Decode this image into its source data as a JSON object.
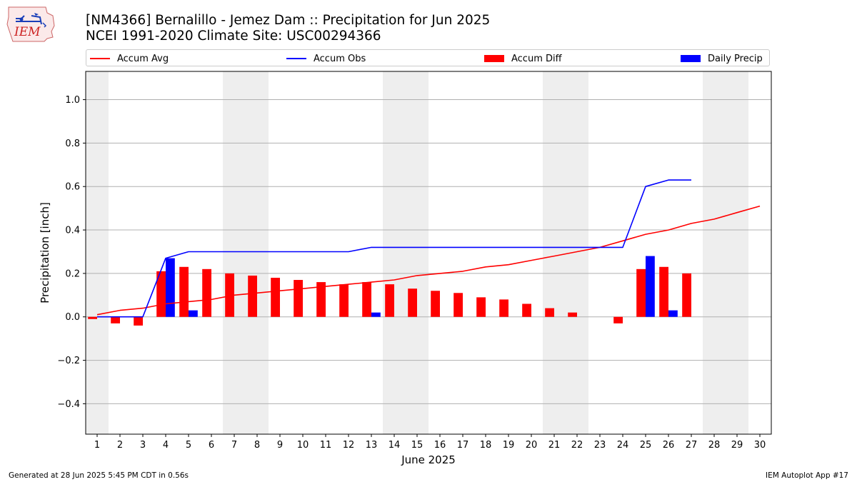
{
  "logo": {
    "text": "IEM"
  },
  "header": {
    "title_line1": "[NM4366] Bernalillo - Jemez Dam :: Precipitation for Jun 2025",
    "title_line2": "NCEI 1991-2020 Climate Site: USC00294366"
  },
  "footer": {
    "generated": "Generated at 28 Jun 2025 5:45 PM CDT in 0.56s",
    "app": "IEM Autoplot App #17"
  },
  "colors": {
    "avg": "#ff0000",
    "obs": "#0000ff",
    "diff": "#ff0000",
    "daily": "#0000ff",
    "weekend": "#eeeeee",
    "grid": "#b0b0b0"
  },
  "chart_data": {
    "type": "bar",
    "title": "[NM4366] Bernalillo - Jemez Dam :: Precipitation for Jun 2025",
    "subtitle": "NCEI 1991-2020 Climate Site: USC00294366",
    "xlabel": "June 2025",
    "ylabel": "Precipitation [inch]",
    "ylim": [
      -0.54,
      1.13
    ],
    "yticks": [
      -0.4,
      -0.2,
      0.0,
      0.2,
      0.4,
      0.6,
      0.8,
      1.0
    ],
    "ytick_labels": [
      "−0.4",
      "−0.2",
      "0.0",
      "0.2",
      "0.4",
      "0.6",
      "0.8",
      "1.0"
    ],
    "days": [
      1,
      2,
      3,
      4,
      5,
      6,
      7,
      8,
      9,
      10,
      11,
      12,
      13,
      14,
      15,
      16,
      17,
      18,
      19,
      20,
      21,
      22,
      23,
      24,
      25,
      26,
      27,
      28,
      29,
      30
    ],
    "weekend_days": [
      1,
      7,
      8,
      14,
      15,
      21,
      22,
      28,
      29
    ],
    "grid": true,
    "legend_position": "top",
    "series": [
      {
        "name": "Accum Avg",
        "kind": "line",
        "values": [
          0.01,
          0.03,
          0.04,
          0.06,
          0.07,
          0.08,
          0.1,
          0.11,
          0.12,
          0.13,
          0.14,
          0.15,
          0.16,
          0.17,
          0.19,
          0.2,
          0.21,
          0.23,
          0.24,
          0.26,
          0.28,
          0.3,
          0.32,
          0.35,
          0.38,
          0.4,
          0.43,
          0.45,
          0.48,
          0.51
        ]
      },
      {
        "name": "Accum Obs",
        "kind": "line",
        "values": [
          0.0,
          0.0,
          0.0,
          0.27,
          0.3,
          0.3,
          0.3,
          0.3,
          0.3,
          0.3,
          0.3,
          0.3,
          0.32,
          0.32,
          0.32,
          0.32,
          0.32,
          0.32,
          0.32,
          0.32,
          0.32,
          0.32,
          0.32,
          0.32,
          0.6,
          0.63,
          0.63,
          null,
          null,
          null
        ]
      },
      {
        "name": "Accum Diff",
        "kind": "bar",
        "values": [
          -0.01,
          -0.03,
          -0.04,
          0.21,
          0.23,
          0.22,
          0.2,
          0.19,
          0.18,
          0.17,
          0.16,
          0.15,
          0.16,
          0.15,
          0.13,
          0.12,
          0.11,
          0.09,
          0.08,
          0.06,
          0.04,
          0.02,
          0.0,
          -0.03,
          0.22,
          0.23,
          0.2,
          null,
          null,
          null
        ]
      },
      {
        "name": "Daily Precip",
        "kind": "bar",
        "values": [
          0,
          0,
          0,
          0.27,
          0.03,
          0,
          0,
          0,
          0,
          0,
          0,
          0,
          0.02,
          0,
          0,
          0,
          0,
          0,
          0,
          0,
          0,
          0,
          0,
          0,
          0.28,
          0.03,
          0,
          null,
          null,
          null
        ]
      }
    ]
  }
}
